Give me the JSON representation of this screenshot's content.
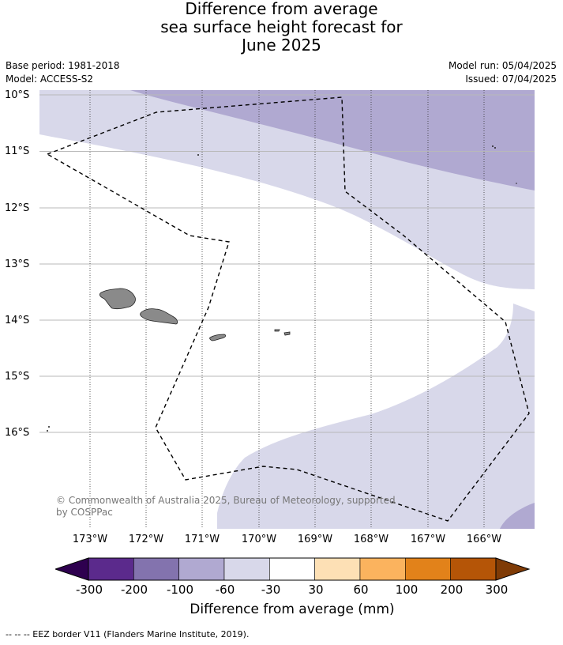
{
  "title": {
    "line1": "Difference from average",
    "line2": "sea surface height forecast for",
    "line3": "June 2025"
  },
  "meta": {
    "base_period": "Base period: 1981-2018",
    "model": "Model: ACCESS-S2",
    "model_run": "Model run: 05/04/2025",
    "issued": "Issued: 07/04/2025"
  },
  "map": {
    "lat_labels": [
      "10°S",
      "11°S",
      "12°S",
      "13°S",
      "14°S",
      "15°S",
      "16°S"
    ],
    "lon_labels": [
      "173°W",
      "172°W",
      "171°W",
      "170°W",
      "169°W",
      "168°W",
      "167°W",
      "166°W"
    ],
    "copyright_line1": "© Commonwealth of Australia 2025, Bureau of Meteorology, supported",
    "copyright_line2": "by COSPPac",
    "colors": {
      "level_neg100_neg60": "#b0a9d1",
      "level_neg60_neg30": "#d8d8ea",
      "land": "#8a8a8a",
      "eez_border": "#000000"
    }
  },
  "colorbar": {
    "ticks": [
      "-300",
      "-200",
      "-100",
      "-60",
      "-30",
      "30",
      "60",
      "100",
      "200",
      "300"
    ],
    "label": "Difference from average (mm)",
    "colors": [
      "#2e004f",
      "#5b2a8c",
      "#8373ae",
      "#b0a9d1",
      "#d8d8ea",
      "#ffffff",
      "#fde0b5",
      "#fbb35e",
      "#e2821a",
      "#b55507",
      "#7f3b06"
    ]
  },
  "footnote": "--  --  -- EEZ border V11 (Flanders Marine Institute, 2019)."
}
